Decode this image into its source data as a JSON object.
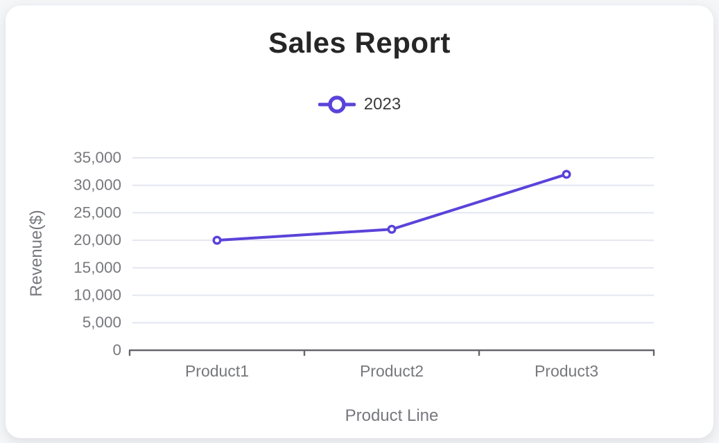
{
  "chart_data": {
    "type": "line",
    "title": "Sales Report",
    "categories": [
      "Product1",
      "Product2",
      "Product3"
    ],
    "series": [
      {
        "name": "2023",
        "values": [
          20000,
          22000,
          32000
        ]
      }
    ],
    "xlabel": "Product Line",
    "ylabel": "Revenue($)",
    "ylim": [
      0,
      35000
    ],
    "y_tick_step": 5000,
    "y_tick_labels": [
      "0",
      "5,000",
      "10,000",
      "15,000",
      "20,000",
      "25,000",
      "30,000",
      "35,000"
    ],
    "grid": true,
    "legend_position": "top",
    "styles": {
      "line_color": "#5a43d9",
      "marker_fill": "#ffffff",
      "grid_color": "#e4e6f1",
      "axis_color": "#65666b",
      "tick_label_color": "#77787d",
      "axis_title_color": "#77787d",
      "title_color": "#262626",
      "legend_text_color": "#3b3b3b",
      "card_bg": "#ffffff",
      "page_bg": "#f5f6f8"
    }
  }
}
